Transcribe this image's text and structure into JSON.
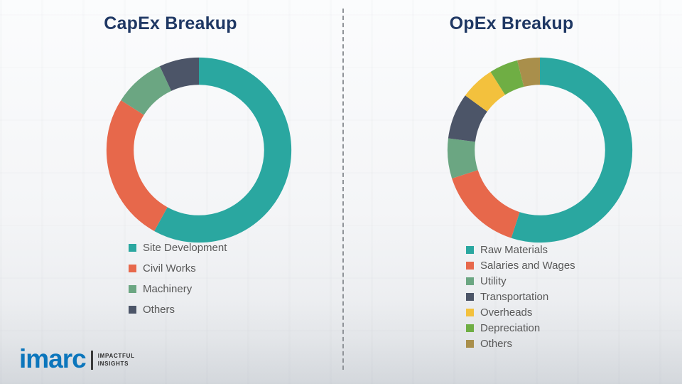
{
  "chart_data": [
    {
      "type": "pie",
      "subtype": "donut",
      "title": "CapEx Breakup",
      "categories": [
        "Site Development",
        "Civil Works",
        "Machinery",
        "Others"
      ],
      "values": [
        58,
        26,
        9,
        7
      ],
      "colors": [
        "#2AA7A0",
        "#E7684B",
        "#6BA682",
        "#4C5568"
      ],
      "start_angle_deg": 0,
      "direction": "clockwise",
      "legend_position": "bottom-left",
      "title_color": "#1F3864"
    },
    {
      "type": "pie",
      "subtype": "donut",
      "title": "OpEx Breakup",
      "categories": [
        "Raw Materials",
        "Salaries and Wages",
        "Utility",
        "Transportation",
        "Overheads",
        "Depreciation",
        "Others"
      ],
      "values": [
        55,
        15,
        7,
        8,
        6,
        5,
        4
      ],
      "colors": [
        "#2AA7A0",
        "#E7684B",
        "#6BA682",
        "#4C5568",
        "#F3C13D",
        "#6FAE44",
        "#A98F4B"
      ],
      "start_angle_deg": 0,
      "direction": "clockwise",
      "legend_position": "bottom-left",
      "title_color": "#1F3864"
    }
  ],
  "divider": {
    "style": "dashed-vertical"
  },
  "logo": {
    "brand": "imarc",
    "tagline1": "IMPACTFUL",
    "tagline2": "INSIGHTS",
    "brand_color": "#0C76BC"
  }
}
